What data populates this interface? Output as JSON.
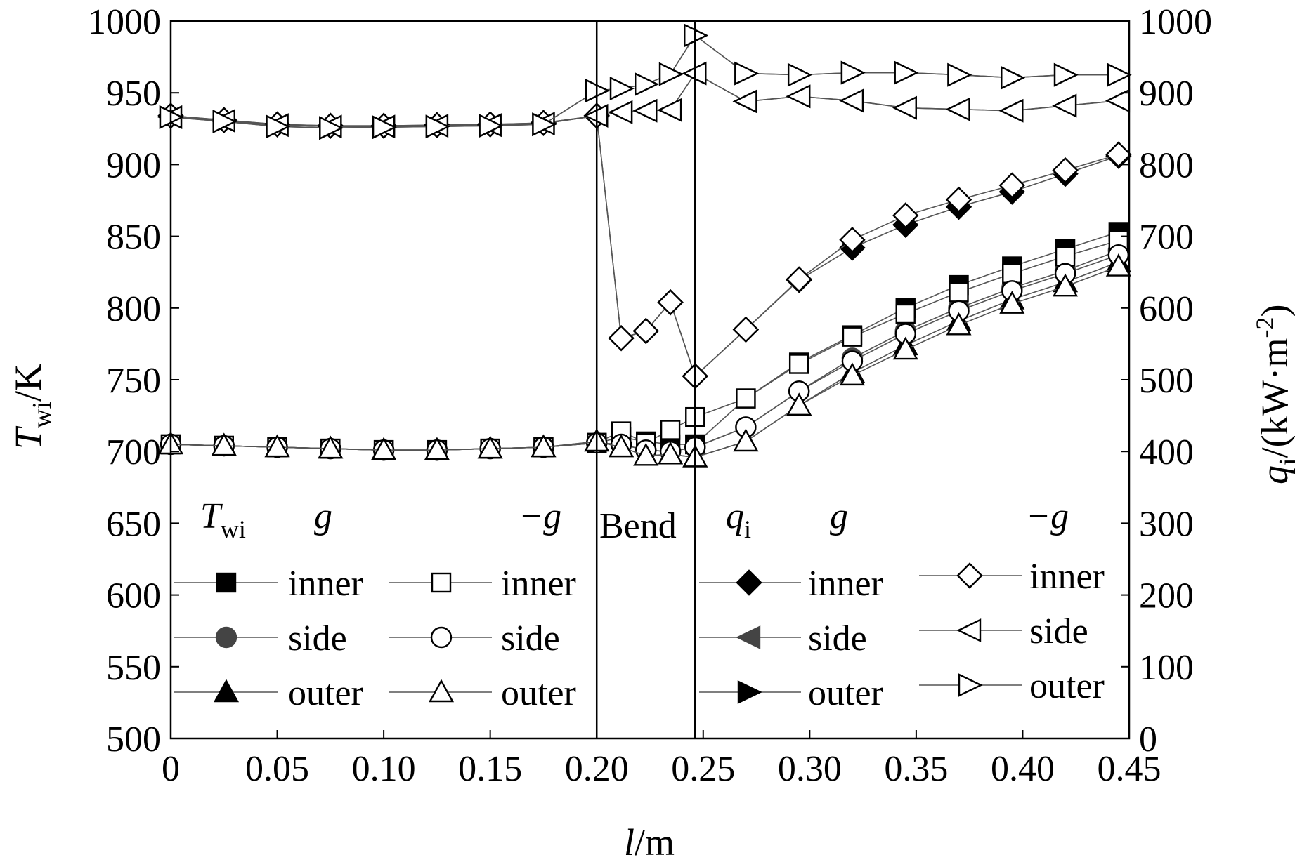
{
  "colors": {
    "line": "#000000",
    "grid": "#000000",
    "gray_line": "#555555",
    "marker_fill_filled": "#000000",
    "marker_fill_open": "#ffffff",
    "side_filled": "#444444"
  },
  "chart_data": {
    "type": "line",
    "x": [
      0,
      0.025,
      0.05,
      0.075,
      0.1,
      0.125,
      0.15,
      0.175,
      0.2,
      0.2115,
      0.2231,
      0.2346,
      0.2462,
      0.27,
      0.295,
      0.32,
      0.345,
      0.37,
      0.395,
      0.42,
      0.445
    ],
    "xlim": [
      0,
      0.45
    ],
    "xticks": [
      "0",
      "0.05",
      "0.10",
      "0.15",
      "0.20",
      "0.25",
      "0.30",
      "0.35",
      "0.40",
      "0.45"
    ],
    "xlabel_italic": "l",
    "xlabel_unit": "/m",
    "ylim_left": [
      500,
      1000
    ],
    "yticks_left": [
      "500",
      "550",
      "600",
      "650",
      "700",
      "750",
      "800",
      "850",
      "900",
      "950",
      "1000"
    ],
    "ylabel_left_main": "T",
    "ylabel_left_sub": "wi",
    "ylabel_left_unit": "/K",
    "ylim_right": [
      0,
      1000
    ],
    "yticks_right": [
      "0",
      "100",
      "200",
      "300",
      "400",
      "500",
      "600",
      "700",
      "800",
      "900",
      "1000"
    ],
    "ylabel_right_main": "q",
    "ylabel_right_sub": "i",
    "ylabel_right_unit": "/(kW·m",
    "ylabel_right_sup": "-2",
    "ylabel_right_close": ")",
    "bend_start": 0.2,
    "bend_end": 0.2462,
    "section_labels": {
      "twi_main": "T",
      "twi_sub": "wi",
      "g_left": "g",
      "neg_g_left": "−g",
      "bend": "Bend",
      "qi_main": "q",
      "qi_sub": "i",
      "g_right": "g",
      "neg_g_right": "−g"
    },
    "legend_labels": {
      "inner": "inner",
      "side": "side",
      "outer": "outer"
    },
    "series": [
      {
        "group": "Twi_g",
        "label_key": "inner",
        "axis": "left",
        "marker": "square",
        "filled": true,
        "values": [
          705,
          704,
          703,
          702,
          701,
          701,
          702,
          703,
          706,
          710,
          707,
          705,
          705,
          737,
          762,
          781,
          800,
          816,
          829,
          841,
          853
        ]
      },
      {
        "group": "Twi_g",
        "label_key": "side",
        "axis": "left",
        "marker": "circle",
        "filled": true,
        "values": [
          705,
          704,
          703,
          702,
          701,
          701,
          702,
          703,
          706,
          705,
          701,
          700,
          703,
          717,
          742,
          765,
          784,
          800,
          814,
          826,
          840
        ]
      },
      {
        "group": "Twi_g",
        "label_key": "outer",
        "axis": "left",
        "marker": "triangle-up",
        "filled": true,
        "values": [
          705,
          704,
          703,
          702,
          701,
          701,
          702,
          703,
          707,
          703,
          697,
          698,
          696,
          707,
          732,
          755,
          774,
          791,
          806,
          818,
          832
        ]
      },
      {
        "group": "Twi_neg_g",
        "label_key": "inner",
        "axis": "left",
        "marker": "square",
        "filled": false,
        "values": [
          705,
          704,
          703,
          702,
          701,
          701,
          702,
          703,
          706,
          714,
          706,
          715,
          724,
          737,
          761,
          780,
          796,
          811,
          824,
          836,
          847
        ]
      },
      {
        "group": "Twi_neg_g",
        "label_key": "side",
        "axis": "left",
        "marker": "circle",
        "filled": false,
        "values": [
          705,
          704,
          703,
          702,
          701,
          701,
          702,
          703,
          706,
          705,
          701,
          700,
          703,
          717,
          742,
          763,
          782,
          798,
          812,
          824,
          837
        ]
      },
      {
        "group": "Twi_neg_g",
        "label_key": "outer",
        "axis": "left",
        "marker": "triangle-up",
        "filled": false,
        "values": [
          705,
          704,
          703,
          702,
          701,
          701,
          702,
          703,
          707,
          703,
          697,
          698,
          696,
          707,
          732,
          753,
          771,
          788,
          803,
          815,
          829
        ]
      },
      {
        "group": "qi_g",
        "label_key": "inner",
        "axis": "right",
        "marker": "diamond",
        "filled": true,
        "values": [
          868,
          862,
          856,
          854,
          854,
          855,
          856,
          858,
          868,
          558,
          568,
          608,
          505,
          570,
          639,
          684,
          716,
          741,
          762,
          787,
          812
        ]
      },
      {
        "group": "qi_g",
        "label_key": "side",
        "axis": "right",
        "marker": "triangle-left",
        "filled": true,
        "values": [
          866,
          861,
          855,
          853,
          853,
          854,
          855,
          857,
          868,
          873,
          875,
          876,
          927,
          888,
          895,
          889,
          879,
          877,
          875,
          882,
          889
        ]
      },
      {
        "group": "qi_g",
        "label_key": "outer",
        "axis": "right",
        "marker": "triangle-right",
        "filled": true,
        "values": [
          866,
          860,
          853,
          851,
          852,
          853,
          854,
          856,
          903,
          906,
          912,
          926,
          980,
          927,
          925,
          928,
          928,
          925,
          921,
          925,
          925
        ]
      },
      {
        "group": "qi_neg_g",
        "label_key": "inner",
        "axis": "right",
        "marker": "diamond",
        "filled": false,
        "values": [
          868,
          862,
          856,
          854,
          854,
          855,
          856,
          858,
          868,
          558,
          568,
          608,
          505,
          570,
          640,
          695,
          729,
          751,
          771,
          792,
          814
        ]
      },
      {
        "group": "qi_neg_g",
        "label_key": "side",
        "axis": "right",
        "marker": "triangle-left",
        "filled": false,
        "values": [
          866,
          861,
          855,
          853,
          853,
          854,
          855,
          857,
          868,
          873,
          875,
          876,
          927,
          888,
          895,
          889,
          879,
          877,
          875,
          882,
          889
        ]
      },
      {
        "group": "qi_neg_g",
        "label_key": "outer",
        "axis": "right",
        "marker": "triangle-right",
        "filled": false,
        "values": [
          866,
          860,
          853,
          851,
          852,
          853,
          854,
          856,
          903,
          906,
          912,
          926,
          980,
          927,
          925,
          928,
          928,
          925,
          921,
          925,
          925
        ]
      }
    ]
  }
}
